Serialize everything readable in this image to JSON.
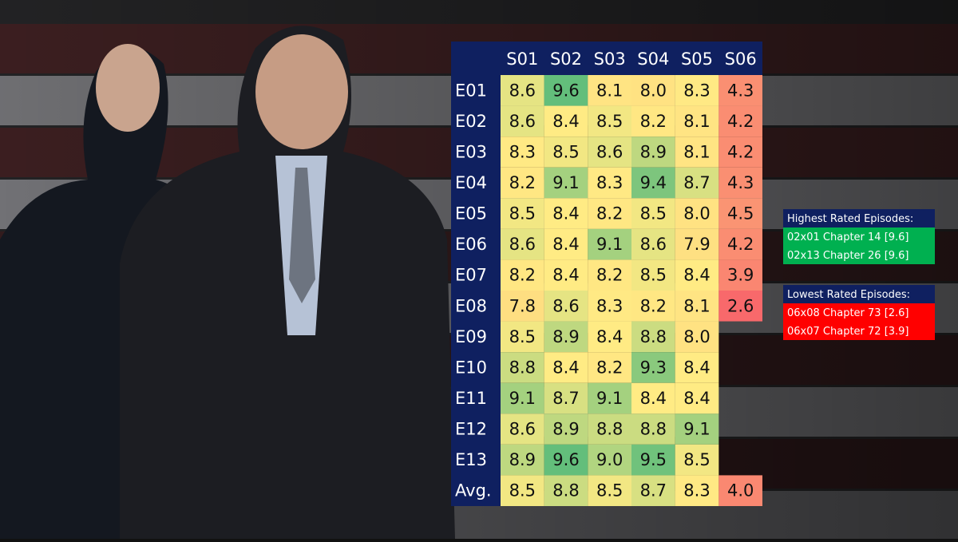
{
  "chart_data": {
    "type": "heatmap",
    "x_categories": [
      "S01",
      "S02",
      "S03",
      "S04",
      "S05",
      "S06"
    ],
    "y_categories": [
      "E01",
      "E02",
      "E03",
      "E04",
      "E05",
      "E06",
      "E07",
      "E08",
      "E09",
      "E10",
      "E11",
      "E12",
      "E13",
      "Avg."
    ],
    "values": [
      [
        8.6,
        9.6,
        8.1,
        8.0,
        8.3,
        4.3
      ],
      [
        8.6,
        8.4,
        8.5,
        8.2,
        8.1,
        4.2
      ],
      [
        8.3,
        8.5,
        8.6,
        8.9,
        8.1,
        4.2
      ],
      [
        8.2,
        9.1,
        8.3,
        9.4,
        8.7,
        4.3
      ],
      [
        8.5,
        8.4,
        8.2,
        8.5,
        8.0,
        4.5
      ],
      [
        8.6,
        8.4,
        9.1,
        8.6,
        7.9,
        4.2
      ],
      [
        8.2,
        8.4,
        8.2,
        8.5,
        8.4,
        3.9
      ],
      [
        7.8,
        8.6,
        8.3,
        8.2,
        8.1,
        2.6
      ],
      [
        8.5,
        8.9,
        8.4,
        8.8,
        8.0,
        null
      ],
      [
        8.8,
        8.4,
        8.2,
        9.3,
        8.4,
        null
      ],
      [
        9.1,
        8.7,
        9.1,
        8.4,
        8.4,
        null
      ],
      [
        8.6,
        8.9,
        8.8,
        8.8,
        9.1,
        null
      ],
      [
        8.9,
        9.6,
        9.0,
        9.5,
        8.5,
        null
      ],
      [
        8.5,
        8.8,
        8.5,
        8.7,
        8.3,
        4.0
      ]
    ],
    "value_labels": [
      [
        "8.6",
        "9.6",
        "8.1",
        "8.0",
        "8.3",
        "4.3"
      ],
      [
        "8.6",
        "8.4",
        "8.5",
        "8.2",
        "8.1",
        "4.2"
      ],
      [
        "8.3",
        "8.5",
        "8.6",
        "8.9",
        "8.1",
        "4.2"
      ],
      [
        "8.2",
        "9.1",
        "8.3",
        "9.4",
        "8.7",
        "4.3"
      ],
      [
        "8.5",
        "8.4",
        "8.2",
        "8.5",
        "8.0",
        "4.5"
      ],
      [
        "8.6",
        "8.4",
        "9.1",
        "8.6",
        "7.9",
        "4.2"
      ],
      [
        "8.2",
        "8.4",
        "8.2",
        "8.5",
        "8.4",
        "3.9"
      ],
      [
        "7.8",
        "8.6",
        "8.3",
        "8.2",
        "8.1",
        "2.6"
      ],
      [
        "8.5",
        "8.9",
        "8.4",
        "8.8",
        "8.0",
        null
      ],
      [
        "8.8",
        "8.4",
        "8.2",
        "9.3",
        "8.4",
        null
      ],
      [
        "9.1",
        "8.7",
        "9.1",
        "8.4",
        "8.4",
        null
      ],
      [
        "8.6",
        "8.9",
        "8.8",
        "8.8",
        "9.1",
        null
      ],
      [
        "8.9",
        "9.6",
        "9.0",
        "9.5",
        "8.5",
        null
      ],
      [
        "8.5",
        "8.8",
        "8.5",
        "8.7",
        "8.3",
        "4.0"
      ]
    ],
    "colormap": [
      "#f8696b",
      "#ffeb84",
      "#63be7b"
    ],
    "header_color": "#0f2060",
    "annotations": [
      {
        "title": "Highest Rated Episodes:",
        "color": "#00b050",
        "items": [
          "02x01 Chapter 14 [9.6]",
          "02x13 Chapter 26 [9.6]"
        ]
      },
      {
        "title": "Lowest Rated Episodes:",
        "color": "#ff0000",
        "items": [
          "06x08 Chapter 73 [2.6]",
          "06x07 Chapter 72 [3.9]"
        ]
      }
    ]
  }
}
